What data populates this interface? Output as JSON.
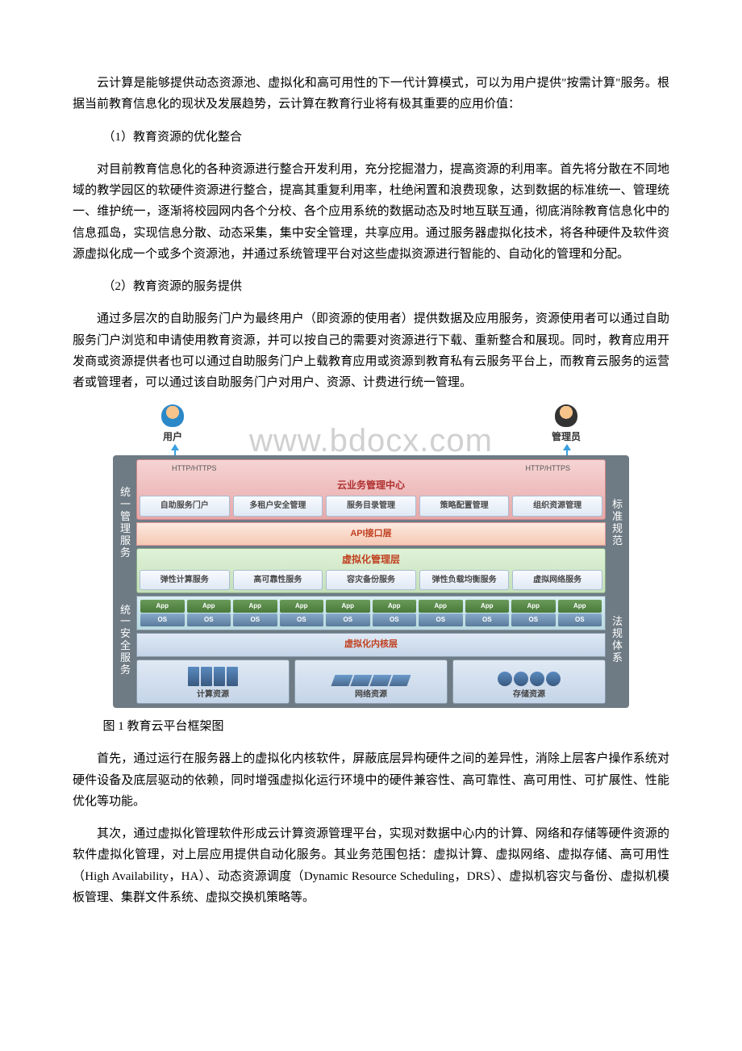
{
  "p1": "云计算是能够提供动态资源池、虚拟化和高可用性的下一代计算模式，可以为用户提供\"按需计算\"服务。根据当前教育信息化的现状及发展趋势，云计算在教育行业将有极其重要的应用价值：",
  "h1": "（1）教育资源的优化整合",
  "p2": "对目前教育信息化的各种资源进行整合开发利用，充分挖掘潜力，提高资源的利用率。首先将分散在不同地域的教学园区的软硬件资源进行整合，提高其重复利用率，杜绝闲置和浪费现象，达到数据的标准统一、管理统一、维护统一，逐渐将校园网内各个分校、各个应用系统的数据动态及时地互联互通，彻底消除教育信息化中的信息孤岛，实现信息分散、动态采集，集中安全管理，共享应用。通过服务器虚拟化技术，将各种硬件及软件资源虚拟化成一个或多个资源池，并通过系统管理平台对这些虚拟资源进行智能的、自动化的管理和分配。",
  "h2": "（2）教育资源的服务提供",
  "p3": "通过多层次的自助服务门户为最终用户（即资源的使用者）提供数据及应用服务，资源使用者可以通过自助服务门户浏览和申请使用教育资源，并可以按自己的需要对资源进行下载、重新整合和展现。同时，教育应用开发商或资源提供者也可以通过自助服务门户上载教育应用或资源到教育私有云服务平台上，而教育云服务的运营者或管理者，可以通过该自助服务门户对用户、资源、计费进行统一管理。",
  "caption": "图 1 教育云平台框架图",
  "p4": "首先，通过运行在服务器上的虚拟化内核软件，屏蔽底层异构硬件之间的差异性，消除上层客户操作系统对硬件设备及底层驱动的依赖，同时增强虚拟化运行环境中的硬件兼容性、高可靠性、高可用性、可扩展性、性能优化等功能。",
  "p5": "其次，通过虚拟化管理软件形成云计算资源管理平台，实现对数据中心内的计算、网络和存储等硬件资源的软件虚拟化管理，对上层应用提供自动化服务。其业务范围包括：虚拟计算、虚拟网络、虚拟存储、高可用性（High Availability，HA）、动态资源调度（Dynamic Resource Scheduling，DRS）、虚拟机容灾与备份、虚拟机模板管理、集群文件系统、虚拟交换机策略等。",
  "diagram": {
    "watermark": "www.bdocx.com",
    "actors": {
      "user": "用户",
      "admin": "管理员"
    },
    "left_side": [
      "统一管理服务",
      "统一安全服务"
    ],
    "right_side": [
      "标准规范",
      "法规体系"
    ],
    "http": "HTTP/HTTPS",
    "mgmt": {
      "title": "云业务管理中心",
      "items": [
        "自助服务门户",
        "多租户安全管理",
        "服务目录管理",
        "策略配置管理",
        "组织资源管理"
      ]
    },
    "api_title": "API接口层",
    "virt": {
      "title": "虚拟化管理层",
      "items": [
        "弹性计算服务",
        "高可靠性服务",
        "容灾备份服务",
        "弹性负载均衡服务",
        "虚拟网络服务"
      ]
    },
    "app_label": "App",
    "os_label": "OS",
    "kernel_title": "虚拟化内核层",
    "resources": [
      "计算资源",
      "网络资源",
      "存储资源"
    ]
  }
}
